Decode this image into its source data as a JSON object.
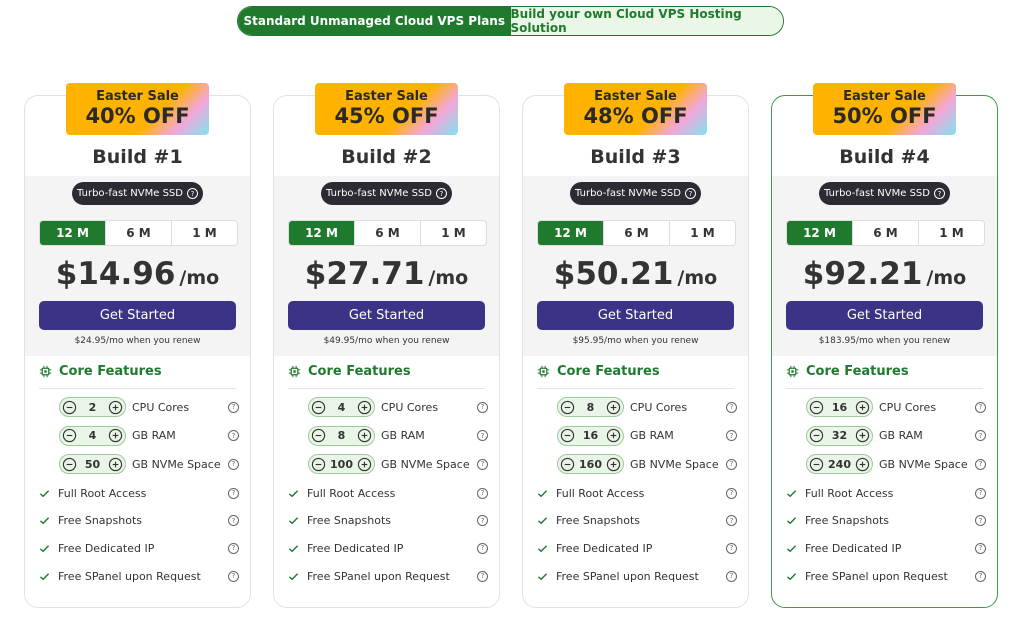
{
  "tabs": [
    "Standard Unmanaged Cloud VPS Plans",
    "Build your own Cloud VPS Hosting Solution"
  ],
  "plans": [
    {
      "badge_line1": "Easter Sale",
      "badge_line2": "40% OFF",
      "name": "Build #1",
      "storage_tag": "Turbo-fast NVMe SSD",
      "terms": [
        "12 M",
        "6 M",
        "1 M"
      ],
      "price": "$14.96",
      "price_unit": "/mo",
      "button": "Get Started",
      "renew_note": "$24.95/mo when you renew",
      "features_title": "Core Features",
      "resources": [
        {
          "value": 2,
          "label": "CPU Cores"
        },
        {
          "value": 4,
          "label": "GB RAM"
        },
        {
          "value": 50,
          "label": "GB NVMe Space"
        }
      ],
      "features": [
        "Full Root Access",
        "Free Snapshots",
        "Free Dedicated IP",
        "Free SPanel upon Request"
      ]
    },
    {
      "badge_line1": "Easter Sale",
      "badge_line2": "45% OFF",
      "name": "Build #2",
      "storage_tag": "Turbo-fast NVMe SSD",
      "terms": [
        "12 M",
        "6 M",
        "1 M"
      ],
      "price": "$27.71",
      "price_unit": "/mo",
      "button": "Get Started",
      "renew_note": "$49.95/mo when you renew",
      "features_title": "Core Features",
      "resources": [
        {
          "value": 4,
          "label": "CPU Cores"
        },
        {
          "value": 8,
          "label": "GB RAM"
        },
        {
          "value": 100,
          "label": "GB NVMe Space"
        }
      ],
      "features": [
        "Full Root Access",
        "Free Snapshots",
        "Free Dedicated IP",
        "Free SPanel upon Request"
      ]
    },
    {
      "badge_line1": "Easter Sale",
      "badge_line2": "48% OFF",
      "name": "Build #3",
      "storage_tag": "Turbo-fast NVMe SSD",
      "terms": [
        "12 M",
        "6 M",
        "1 M"
      ],
      "price": "$50.21",
      "price_unit": "/mo",
      "button": "Get Started",
      "renew_note": "$95.95/mo when you renew",
      "features_title": "Core Features",
      "resources": [
        {
          "value": 8,
          "label": "CPU Cores"
        },
        {
          "value": 16,
          "label": "GB RAM"
        },
        {
          "value": 160,
          "label": "GB NVMe Space"
        }
      ],
      "features": [
        "Full Root Access",
        "Free Snapshots",
        "Free Dedicated IP",
        "Free SPanel upon Request"
      ]
    },
    {
      "badge_line1": "Easter Sale",
      "badge_line2": "50% OFF",
      "name": "Build #4",
      "storage_tag": "Turbo-fast NVMe SSD",
      "terms": [
        "12 M",
        "6 M",
        "1 M"
      ],
      "price": "$92.21",
      "price_unit": "/mo",
      "button": "Get Started",
      "renew_note": "$183.95/mo when you renew",
      "features_title": "Core Features",
      "resources": [
        {
          "value": 16,
          "label": "CPU Cores"
        },
        {
          "value": 32,
          "label": "GB RAM"
        },
        {
          "value": 240,
          "label": "GB NVMe Space"
        }
      ],
      "features": [
        "Full Root Access",
        "Free Snapshots",
        "Free Dedicated IP",
        "Free SPanel upon Request"
      ]
    }
  ]
}
